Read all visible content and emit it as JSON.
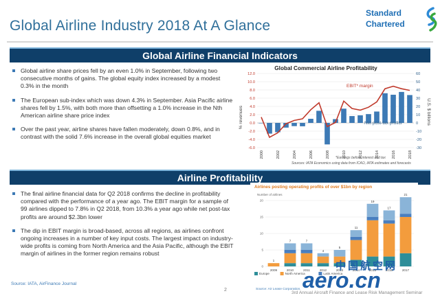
{
  "header": {
    "title": "Global Airline Industry 2018 At A Glance"
  },
  "logo": {
    "line1": "Standard",
    "line2": "Chartered"
  },
  "section1": {
    "title": "Global Airline Financial Indicators",
    "bullets": [
      "Global airline share prices fell by an even 1.0% in September, following two consecutive months of gains. The global equity index increased by a modest 0.3% in the month",
      "The European sub-index which was down 4.3% in September. Asia Pacific airline shares fell by 1.5%, with both more than offsetting a 1.0% increase in the Nth American airline share price index",
      "Over the past year, airline shares have fallen moderately, down 0.8%, and in contrast with the solid 7.6% increase in the overall global equities market"
    ]
  },
  "section2": {
    "title": "Airline Profitability",
    "bullets": [
      "The final airline financial data for Q2 2018 confirms the decline in profitability compared with the performance of a year ago. The EBIT margin for a sample of 99 airlines dipped to 7.8% in Q2 2018, from 10.3% a year ago while net post-tax profits are around $2.3bn lower",
      "The dip in EBIT margin is broad-based, across all regions, as airlines confront ongoing increases in a number of key input costs. The largest impact on industry-wide profits is coming from North America and the Asia Pacific, although the EBIT margin of airlines in the former region remains robust"
    ]
  },
  "chart_data": [
    {
      "type": "bar",
      "title": "Global Commercial Airline Profitability",
      "ylabel": "% revenues",
      "y2label": "U.S. $ billions",
      "ylim": [
        -6,
        12
      ],
      "y2lim": [
        -30,
        60
      ],
      "yticks": [
        "12.0",
        "10.0",
        "8.0",
        "6.0",
        "4.0",
        "2.0",
        "0.0",
        "-2.0",
        "-4.0",
        "-6.0"
      ],
      "y2ticks": [
        "60",
        "50",
        "40",
        "30",
        "20",
        "10",
        "0",
        "-10",
        "-20",
        "-30"
      ],
      "xticks": [
        "2000",
        "2002",
        "2004",
        "2006",
        "2008",
        "2010",
        "2012",
        "2014",
        "2016",
        "2018"
      ],
      "x": [
        2000,
        2001,
        2002,
        2003,
        2004,
        2005,
        2006,
        2007,
        2008,
        2009,
        2010,
        2011,
        2012,
        2013,
        2014,
        2015,
        2016,
        2017,
        2018
      ],
      "series": [
        {
          "name": "Net post-tax profits",
          "kind": "bar",
          "axis": "right",
          "values": [
            -0.5,
            -13,
            -11.3,
            -5.7,
            -3.9,
            -4.1,
            5,
            14.7,
            -26.1,
            4.6,
            17.3,
            8.3,
            9.2,
            10.7,
            13.8,
            36,
            34.2,
            37.6,
            33.8
          ]
        },
        {
          "name": "EBIT* margin",
          "kind": "line",
          "axis": "left",
          "values": [
            1.4,
            -3.5,
            -2.4,
            -0.2,
            0.6,
            1,
            3.2,
            4.9,
            -0.9,
            0.1,
            5.3,
            3.5,
            3.1,
            3.8,
            5.1,
            8.3,
            8.9,
            8.3,
            7.9
          ]
        }
      ],
      "notes": [
        "*Earnings before interest and tax",
        "Sources: IATA Economics using data from ICAO, IATA estimates and forecasts"
      ],
      "colors": {
        "bars": "#3d7ab5",
        "line": "#c0392b"
      }
    },
    {
      "type": "bar",
      "stacked": true,
      "title": "Airlines posting operating profits of over $1bn by region",
      "ylabel": "Number of airlines",
      "ylim": [
        0,
        20
      ],
      "yticks": [
        "20",
        "15",
        "10",
        "5",
        "0"
      ],
      "categories": [
        "2009",
        "2010",
        "2011",
        "2012",
        "2013",
        "2014",
        "2015",
        "2016",
        "2017"
      ],
      "totals": [
        1,
        7,
        7,
        4,
        5,
        11,
        19,
        17,
        21
      ],
      "series": [
        {
          "name": "Europe",
          "values": [
            0,
            1,
            1,
            1,
            1,
            2,
            3,
            3,
            4
          ],
          "color": "#2e8e99"
        },
        {
          "name": "North America",
          "values": [
            1,
            3,
            3,
            2,
            2,
            6,
            11,
            10,
            11
          ],
          "color": "#f39c3d"
        },
        {
          "name": "Latin America",
          "values": [
            0,
            1,
            1,
            0,
            0,
            1,
            1,
            1,
            1
          ],
          "color": "#4a7fbf"
        },
        {
          "name": "",
          "values": [
            0,
            2,
            2,
            1,
            2,
            2,
            4,
            3,
            5
          ],
          "color": "#8ab4d8"
        }
      ],
      "legend_visible": [
        "Europe",
        "North America",
        "Latin America"
      ],
      "source": "Source: Air Lease Corporation."
    }
  ],
  "footer": {
    "source": "Source: IATA, AirFinance Journal",
    "page": "2",
    "event": "3rd Annual Aircraft Finance and Lease Risk Management Seminar"
  },
  "watermark": {
    "cn": "中国航空网",
    "en": "aero.cn"
  }
}
